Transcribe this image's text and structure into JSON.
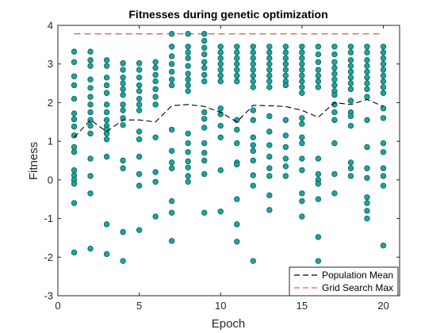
{
  "chart_data": {
    "type": "scatter",
    "title": "Fitnesses during genetic optimization",
    "xlabel": "Epoch",
    "ylabel": "Fitness",
    "xlim": [
      0,
      21
    ],
    "ylim": [
      -3,
      4
    ],
    "xticks": [
      "0",
      "5",
      "10",
      "15",
      "20"
    ],
    "yticks": [
      "-3",
      "-2",
      "-1",
      "0",
      "1",
      "2",
      "3",
      "4"
    ],
    "grid": false,
    "legend_position": "bottom-right",
    "colors": {
      "points": "#1fa39b",
      "point_edge": "#0b5d58",
      "mean": "#000000",
      "grid_max": "#e06060"
    },
    "series": [
      {
        "name": "Population Mean",
        "style": "dashed-line",
        "x": [
          1,
          2,
          3,
          4,
          5,
          6,
          7,
          8,
          9,
          10,
          11,
          12,
          13,
          14,
          15,
          16,
          17,
          18,
          19,
          20
        ],
        "y": [
          1.1,
          1.55,
          1.25,
          1.55,
          1.55,
          1.5,
          1.92,
          1.95,
          1.9,
          1.75,
          1.5,
          1.93,
          1.92,
          1.9,
          1.8,
          1.62,
          2.0,
          1.95,
          2.08,
          1.9
        ]
      },
      {
        "name": "Grid Search Max",
        "style": "dashed-line",
        "x": [
          1,
          20
        ],
        "y": [
          3.78,
          3.78
        ]
      },
      {
        "name": "Population",
        "style": "markers",
        "points": [
          [
            1,
            3.32
          ],
          [
            1,
            3.05
          ],
          [
            1,
            2.68
          ],
          [
            1,
            2.45
          ],
          [
            1,
            2.1
          ],
          [
            1,
            1.72
          ],
          [
            1,
            1.57
          ],
          [
            1,
            1.38
          ],
          [
            1,
            1.15
          ],
          [
            1,
            0.85
          ],
          [
            1,
            0.72
          ],
          [
            1,
            0.25
          ],
          [
            1,
            0.12
          ],
          [
            1,
            0.0
          ],
          [
            1,
            -0.1
          ],
          [
            1,
            -0.6
          ],
          [
            1,
            -1.88
          ],
          [
            2,
            3.32
          ],
          [
            2,
            3.1
          ],
          [
            2,
            2.95
          ],
          [
            2,
            2.6
          ],
          [
            2,
            2.38
          ],
          [
            2,
            2.15
          ],
          [
            2,
            1.95
          ],
          [
            2,
            1.75
          ],
          [
            2,
            1.55
          ],
          [
            2,
            1.4
          ],
          [
            2,
            1.2
          ],
          [
            2,
            0.55
          ],
          [
            2,
            0.1
          ],
          [
            2,
            -0.35
          ],
          [
            2,
            -1.78
          ],
          [
            3,
            3.1
          ],
          [
            3,
            2.95
          ],
          [
            3,
            2.65
          ],
          [
            3,
            2.45
          ],
          [
            3,
            2.25
          ],
          [
            3,
            1.95
          ],
          [
            3,
            1.75
          ],
          [
            3,
            1.55
          ],
          [
            3,
            1.4
          ],
          [
            3,
            1.3
          ],
          [
            3,
            1.2
          ],
          [
            3,
            1.05
          ],
          [
            3,
            0.6
          ],
          [
            3,
            -1.15
          ],
          [
            3,
            -1.92
          ],
          [
            4,
            3.02
          ],
          [
            4,
            2.85
          ],
          [
            4,
            2.65
          ],
          [
            4,
            2.5
          ],
          [
            4,
            2.35
          ],
          [
            4,
            2.2
          ],
          [
            4,
            1.95
          ],
          [
            4,
            1.8
          ],
          [
            4,
            1.6
          ],
          [
            4,
            1.42
          ],
          [
            4,
            0.5
          ],
          [
            4,
            0.3
          ],
          [
            4,
            -1.35
          ],
          [
            4,
            -2.1
          ],
          [
            5,
            3.02
          ],
          [
            5,
            2.85
          ],
          [
            5,
            2.65
          ],
          [
            5,
            2.45
          ],
          [
            5,
            2.3
          ],
          [
            5,
            2.1
          ],
          [
            5,
            1.95
          ],
          [
            5,
            1.8
          ],
          [
            5,
            1.25
          ],
          [
            5,
            1.05
          ],
          [
            5,
            0.6
          ],
          [
            5,
            0.15
          ],
          [
            5,
            -0.15
          ],
          [
            5,
            -1.3
          ],
          [
            6,
            3.05
          ],
          [
            6,
            2.9
          ],
          [
            6,
            2.72
          ],
          [
            6,
            2.55
          ],
          [
            6,
            2.35
          ],
          [
            6,
            2.15
          ],
          [
            6,
            1.95
          ],
          [
            6,
            1.1
          ],
          [
            6,
            0.2
          ],
          [
            6,
            -0.05
          ],
          [
            6,
            -0.95
          ],
          [
            7,
            3.78
          ],
          [
            7,
            3.45
          ],
          [
            7,
            3.2
          ],
          [
            7,
            3.0
          ],
          [
            7,
            2.8
          ],
          [
            7,
            2.6
          ],
          [
            7,
            2.45
          ],
          [
            7,
            1.3
          ],
          [
            7,
            0.75
          ],
          [
            7,
            0.45
          ],
          [
            7,
            0.3
          ],
          [
            7,
            -0.55
          ],
          [
            7,
            -0.85
          ],
          [
            7,
            -1.58
          ],
          [
            8,
            3.78
          ],
          [
            8,
            3.45
          ],
          [
            8,
            3.3
          ],
          [
            8,
            3.15
          ],
          [
            8,
            2.95
          ],
          [
            8,
            2.75
          ],
          [
            8,
            2.6
          ],
          [
            8,
            2.45
          ],
          [
            8,
            2.3
          ],
          [
            8,
            1.2
          ],
          [
            8,
            0.95
          ],
          [
            8,
            0.72
          ],
          [
            8,
            0.48
          ],
          [
            8,
            0.32
          ],
          [
            8,
            0.1
          ],
          [
            8,
            -0.05
          ],
          [
            9,
            3.78
          ],
          [
            9,
            3.6
          ],
          [
            9,
            3.42
          ],
          [
            9,
            3.25
          ],
          [
            9,
            3.05
          ],
          [
            9,
            2.9
          ],
          [
            9,
            2.72
          ],
          [
            9,
            2.55
          ],
          [
            9,
            1.75
          ],
          [
            9,
            1.58
          ],
          [
            9,
            1.35
          ],
          [
            9,
            0.95
          ],
          [
            9,
            0.7
          ],
          [
            9,
            0.5
          ],
          [
            9,
            0.15
          ],
          [
            9,
            -0.85
          ],
          [
            10,
            3.45
          ],
          [
            10,
            3.3
          ],
          [
            10,
            3.15
          ],
          [
            10,
            3.0
          ],
          [
            10,
            2.85
          ],
          [
            10,
            2.7
          ],
          [
            10,
            2.55
          ],
          [
            10,
            1.85
          ],
          [
            10,
            1.7
          ],
          [
            10,
            1.4
          ],
          [
            10,
            1.1
          ],
          [
            10,
            0.25
          ],
          [
            10,
            -0.82
          ],
          [
            11,
            3.45
          ],
          [
            11,
            3.3
          ],
          [
            11,
            3.15
          ],
          [
            11,
            3.0
          ],
          [
            11,
            2.85
          ],
          [
            11,
            2.7
          ],
          [
            11,
            2.55
          ],
          [
            11,
            1.55
          ],
          [
            11,
            1.3
          ],
          [
            11,
            0.95
          ],
          [
            11,
            0.45
          ],
          [
            11,
            0.4
          ],
          [
            11,
            -0.5
          ],
          [
            11,
            -1.15
          ],
          [
            11,
            -1.6
          ],
          [
            12,
            3.45
          ],
          [
            12,
            3.3
          ],
          [
            12,
            3.15
          ],
          [
            12,
            3.0
          ],
          [
            12,
            2.85
          ],
          [
            12,
            2.7
          ],
          [
            12,
            2.55
          ],
          [
            12,
            2.4
          ],
          [
            12,
            1.8
          ],
          [
            12,
            1.55
          ],
          [
            12,
            1.1
          ],
          [
            12,
            0.9
          ],
          [
            12,
            0.75
          ],
          [
            12,
            0.5
          ],
          [
            12,
            0.12
          ],
          [
            12,
            -0.15
          ],
          [
            12,
            -2.1
          ],
          [
            13,
            3.45
          ],
          [
            13,
            3.3
          ],
          [
            13,
            3.15
          ],
          [
            13,
            3.0
          ],
          [
            13,
            2.85
          ],
          [
            13,
            2.7
          ],
          [
            13,
            2.55
          ],
          [
            13,
            2.4
          ],
          [
            13,
            1.65
          ],
          [
            13,
            1.25
          ],
          [
            13,
            0.9
          ],
          [
            13,
            0.6
          ],
          [
            13,
            0.3
          ],
          [
            13,
            0.1
          ],
          [
            13,
            -0.4
          ],
          [
            13,
            -0.78
          ],
          [
            14,
            3.45
          ],
          [
            14,
            3.3
          ],
          [
            14,
            3.15
          ],
          [
            14,
            3.0
          ],
          [
            14,
            2.85
          ],
          [
            14,
            2.7
          ],
          [
            14,
            2.55
          ],
          [
            14,
            2.45
          ],
          [
            14,
            1.55
          ],
          [
            14,
            1.15
          ],
          [
            14,
            0.85
          ],
          [
            14,
            0.55
          ],
          [
            14,
            0.35
          ],
          [
            14,
            0.1
          ],
          [
            15,
            3.45
          ],
          [
            15,
            3.3
          ],
          [
            15,
            3.15
          ],
          [
            15,
            3.0
          ],
          [
            15,
            2.85
          ],
          [
            15,
            2.7
          ],
          [
            15,
            2.55
          ],
          [
            15,
            2.4
          ],
          [
            15,
            2.25
          ],
          [
            15,
            1.6
          ],
          [
            15,
            1.45
          ],
          [
            15,
            1.1
          ],
          [
            15,
            0.95
          ],
          [
            15,
            0.55
          ],
          [
            15,
            0.25
          ],
          [
            15,
            -0.55
          ],
          [
            15,
            -0.95
          ],
          [
            15,
            -0.35
          ],
          [
            16,
            3.45
          ],
          [
            16,
            3.25
          ],
          [
            16,
            3.05
          ],
          [
            16,
            2.85
          ],
          [
            16,
            2.7
          ],
          [
            16,
            2.55
          ],
          [
            16,
            2.4
          ],
          [
            16,
            0.55
          ],
          [
            16,
            0.15
          ],
          [
            16,
            0.0
          ],
          [
            16,
            -0.1
          ],
          [
            16,
            -0.5
          ],
          [
            16,
            -1.48
          ],
          [
            16,
            -2.1
          ],
          [
            17,
            3.45
          ],
          [
            17,
            3.25
          ],
          [
            17,
            3.05
          ],
          [
            17,
            2.9
          ],
          [
            17,
            2.75
          ],
          [
            17,
            2.6
          ],
          [
            17,
            2.45
          ],
          [
            17,
            2.3
          ],
          [
            17,
            2.2
          ],
          [
            17,
            1.95
          ],
          [
            17,
            1.75
          ],
          [
            17,
            1.55
          ],
          [
            17,
            0.95
          ],
          [
            17,
            0.15
          ],
          [
            17,
            -0.35
          ],
          [
            18,
            3.45
          ],
          [
            18,
            3.3
          ],
          [
            18,
            3.1
          ],
          [
            18,
            2.95
          ],
          [
            18,
            2.8
          ],
          [
            18,
            2.65
          ],
          [
            18,
            2.5
          ],
          [
            18,
            2.35
          ],
          [
            18,
            2.05
          ],
          [
            18,
            1.75
          ],
          [
            18,
            1.65
          ],
          [
            18,
            1.4
          ],
          [
            18,
            0.45
          ],
          [
            18,
            0.3
          ],
          [
            18,
            0.1
          ],
          [
            19,
            3.45
          ],
          [
            19,
            3.3
          ],
          [
            19,
            3.1
          ],
          [
            19,
            2.95
          ],
          [
            19,
            2.8
          ],
          [
            19,
            2.65
          ],
          [
            19,
            2.5
          ],
          [
            19,
            2.35
          ],
          [
            19,
            2.15
          ],
          [
            19,
            1.55
          ],
          [
            19,
            0.85
          ],
          [
            19,
            0.3
          ],
          [
            19,
            0.05
          ],
          [
            19,
            -0.45
          ],
          [
            19,
            -0.6
          ],
          [
            19,
            -0.8
          ],
          [
            19,
            -1.0
          ],
          [
            20,
            3.45
          ],
          [
            20,
            3.3
          ],
          [
            20,
            3.15
          ],
          [
            20,
            3.0
          ],
          [
            20,
            2.85
          ],
          [
            20,
            2.7
          ],
          [
            20,
            2.55
          ],
          [
            20,
            2.4
          ],
          [
            20,
            2.25
          ],
          [
            20,
            1.85
          ],
          [
            20,
            1.6
          ],
          [
            20,
            0.95
          ],
          [
            20,
            0.72
          ],
          [
            20,
            0.3
          ],
          [
            20,
            0.1
          ],
          [
            20,
            -0.15
          ],
          [
            20,
            -1.7
          ]
        ]
      }
    ]
  }
}
